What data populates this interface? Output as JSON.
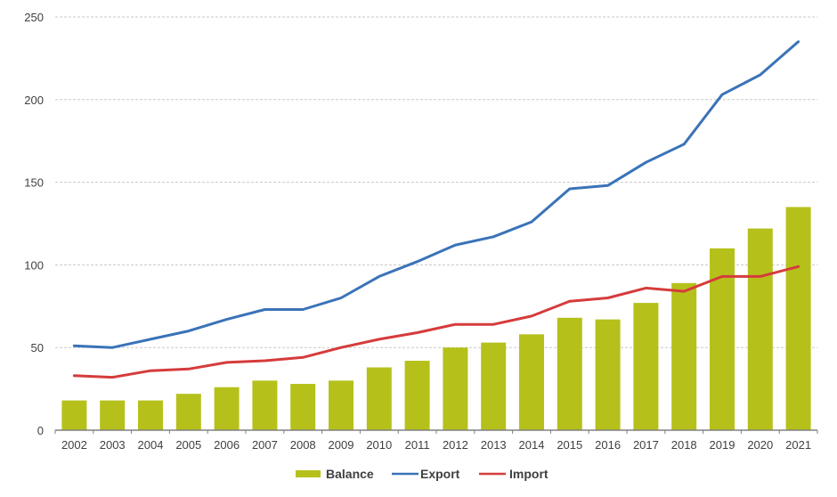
{
  "chart_data": {
    "type": "bar+line",
    "title": "",
    "xlabel": "",
    "ylabel": "",
    "ylim": [
      0,
      250
    ],
    "yticks": [
      0,
      50,
      100,
      150,
      200,
      250
    ],
    "grid": "horizontal-dashed",
    "legend": "bottom-center",
    "categories": [
      "2002",
      "2003",
      "2004",
      "2005",
      "2006",
      "2007",
      "2008",
      "2009",
      "2010",
      "2011",
      "2012",
      "2013",
      "2014",
      "2015",
      "2016",
      "2017",
      "2018",
      "2019",
      "2020",
      "2021"
    ],
    "series": [
      {
        "name": "Balance",
        "kind": "bar",
        "color": "#b5c11a",
        "values": [
          18,
          18,
          18,
          22,
          26,
          30,
          28,
          30,
          38,
          42,
          50,
          53,
          58,
          68,
          67,
          77,
          89,
          110,
          122,
          135
        ]
      },
      {
        "name": "Export",
        "kind": "line",
        "color": "#3a73b8",
        "values": [
          51,
          50,
          55,
          60,
          67,
          73,
          73,
          80,
          93,
          102,
          112,
          117,
          126,
          146,
          148,
          162,
          173,
          203,
          215,
          235
        ]
      },
      {
        "name": "Import",
        "kind": "line",
        "color": "#d63b3b",
        "values": [
          33,
          32,
          36,
          37,
          41,
          42,
          44,
          50,
          55,
          59,
          64,
          64,
          69,
          78,
          80,
          86,
          84,
          93,
          93,
          99
        ]
      }
    ]
  }
}
